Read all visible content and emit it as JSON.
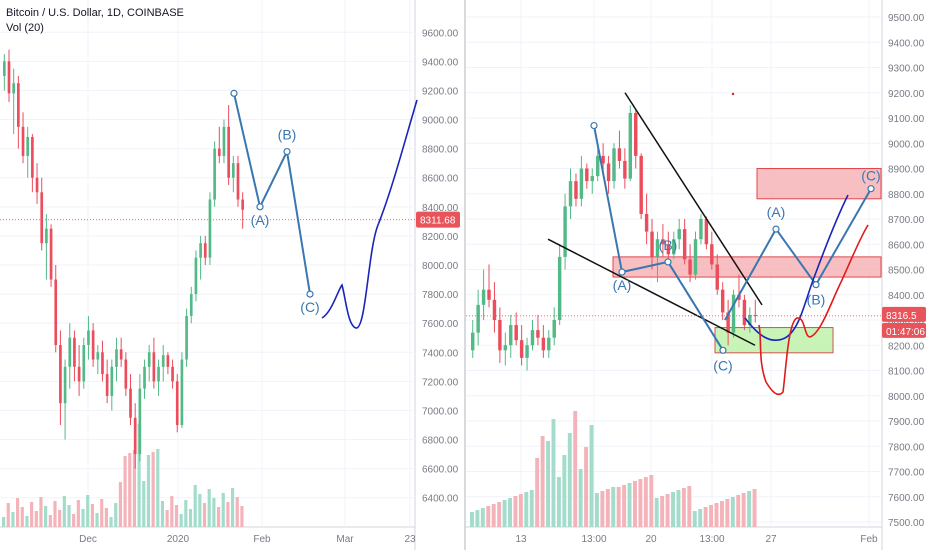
{
  "header": {
    "title": "Bitcoin / U.S. Dollar, 1D, COINBASE",
    "indicator": "Vol (20)"
  },
  "colors": {
    "up_candle": "#53b987",
    "down_candle": "#eb4d5c",
    "vol_up": "#a3dccb",
    "vol_down": "#f4b3b9",
    "wave": "#3a77b0",
    "hand_blue": "#1a24b8",
    "hand_red": "#e01b1b",
    "zone_red_fill": "#f5a9ad",
    "zone_red_stroke": "#e0474e",
    "zone_green_fill": "#b7f0a0",
    "zone_green_stroke": "#d25050",
    "price_tag": "#e8545a"
  },
  "chart_data": [
    {
      "type": "candlestick",
      "title": "Bitcoin / U.S. Dollar, 1D, COINBASE",
      "price_axis": {
        "ticks": [
          "9600.00",
          "9400.00",
          "9200.00",
          "9000.00",
          "8800.00",
          "8600.00",
          "8400.00",
          "8200.00",
          "8000.00",
          "7800.00",
          "7600.00",
          "7400.00",
          "7200.00",
          "7000.00",
          "6800.00",
          "6600.00",
          "6400.00"
        ]
      },
      "time_axis": {
        "ticks": [
          "Dec",
          "2020",
          "Feb",
          "Mar",
          "23"
        ]
      },
      "last_price_label": "8311.68",
      "last_price": 8311.68,
      "ylim": [
        6250,
        9750
      ],
      "candles_ohlc": [
        [
          9300,
          9450,
          9200,
          9400
        ],
        [
          9400,
          9480,
          9120,
          9180
        ],
        [
          9180,
          9350,
          8900,
          9250
        ],
        [
          9250,
          9300,
          8800,
          8950
        ],
        [
          8950,
          9050,
          8700,
          8750
        ],
        [
          8750,
          8950,
          8600,
          8880
        ],
        [
          8880,
          8900,
          8500,
          8600
        ],
        [
          8600,
          8700,
          8420,
          8500
        ],
        [
          8500,
          8600,
          8100,
          8150
        ],
        [
          8150,
          8350,
          7900,
          8250
        ],
        [
          8250,
          8280,
          7850,
          7900
        ],
        [
          7900,
          8000,
          7400,
          7450
        ],
        [
          7450,
          7550,
          6900,
          7050
        ],
        [
          7050,
          7350,
          6800,
          7300
        ],
        [
          7300,
          7600,
          7150,
          7500
        ],
        [
          7500,
          7550,
          7200,
          7300
        ],
        [
          7300,
          7450,
          7100,
          7200
        ],
        [
          7200,
          7500,
          7150,
          7450
        ],
        [
          7450,
          7650,
          7350,
          7550
        ],
        [
          7550,
          7600,
          7300,
          7350
        ],
        [
          7350,
          7450,
          7250,
          7400
        ],
        [
          7400,
          7480,
          7200,
          7250
        ],
        [
          7250,
          7350,
          7050,
          7100
        ],
        [
          7100,
          7350,
          7000,
          7300
        ],
        [
          7300,
          7500,
          7200,
          7420
        ],
        [
          7420,
          7500,
          7300,
          7350
        ],
        [
          7350,
          7400,
          7100,
          7150
        ],
        [
          7150,
          7250,
          6900,
          6950
        ],
        [
          6950,
          7050,
          6600,
          6700
        ],
        [
          6700,
          7250,
          6650,
          7150
        ],
        [
          7150,
          7350,
          7080,
          7300
        ],
        [
          7300,
          7450,
          7200,
          7400
        ],
        [
          7400,
          7500,
          7150,
          7200
        ],
        [
          7200,
          7350,
          7100,
          7300
        ],
        [
          7300,
          7450,
          7200,
          7380
        ],
        [
          7380,
          7400,
          7250,
          7300
        ],
        [
          7300,
          7350,
          7150,
          7200
        ],
        [
          7200,
          7250,
          6850,
          6900
        ],
        [
          6900,
          7400,
          6880,
          7350
        ],
        [
          7350,
          7700,
          7300,
          7650
        ],
        [
          7650,
          7850,
          7600,
          7800
        ],
        [
          7800,
          8100,
          7750,
          8050
        ],
        [
          8050,
          8200,
          7900,
          8150
        ],
        [
          8150,
          8200,
          8000,
          8050
        ],
        [
          8050,
          8500,
          8000,
          8450
        ],
        [
          8450,
          8850,
          8400,
          8800
        ],
        [
          8800,
          8950,
          8700,
          8750
        ],
        [
          8750,
          9000,
          8700,
          8950
        ],
        [
          8950,
          9100,
          8550,
          8600
        ],
        [
          8600,
          8750,
          8500,
          8700
        ],
        [
          8700,
          8750,
          8400,
          8450
        ],
        [
          8450,
          8500,
          8250,
          8380
        ]
      ],
      "volume_bars": 52,
      "annotations": [
        {
          "label": "(A)",
          "price": 8400
        },
        {
          "label": "(B)",
          "price": 8780
        },
        {
          "label": "(C)",
          "price": 7800
        }
      ],
      "wave_path_prices": [
        9180,
        8400,
        8780,
        7800
      ]
    },
    {
      "type": "candlestick",
      "price_axis": {
        "ticks": [
          "9500.00",
          "9400.00",
          "9300.00",
          "9200.00",
          "9100.00",
          "9000.00",
          "8900.00",
          "8800.00",
          "8700.00",
          "8600.00",
          "8500.00",
          "8400.00",
          "8300.00",
          "8200.00",
          "8100.00",
          "8000.00",
          "7900.00",
          "7800.00",
          "7700.00",
          "7600.00",
          "7500.00"
        ]
      },
      "time_axis": {
        "ticks": [
          "13",
          "13:00",
          "20",
          "13:00",
          "27",
          "Feb"
        ]
      },
      "last_price_label": "8316.5",
      "countdown_label": "01:47:06",
      "last_price": 8316.5,
      "ylim": [
        7480,
        9560
      ],
      "candles_ohlc": [
        [
          8180,
          8300,
          8150,
          8250
        ],
        [
          8250,
          8420,
          8200,
          8360
        ],
        [
          8360,
          8500,
          8300,
          8420
        ],
        [
          8420,
          8520,
          8350,
          8380
        ],
        [
          8380,
          8450,
          8250,
          8300
        ],
        [
          8300,
          8350,
          8130,
          8180
        ],
        [
          8180,
          8250,
          8120,
          8200
        ],
        [
          8200,
          8320,
          8150,
          8280
        ],
        [
          8280,
          8330,
          8200,
          8220
        ],
        [
          8220,
          8280,
          8120,
          8150
        ],
        [
          8150,
          8230,
          8100,
          8200
        ],
        [
          8200,
          8300,
          8180,
          8260
        ],
        [
          8260,
          8320,
          8200,
          8230
        ],
        [
          8230,
          8280,
          8150,
          8180
        ],
        [
          8180,
          8260,
          8150,
          8230
        ],
        [
          8230,
          8350,
          8200,
          8300
        ],
        [
          8300,
          8600,
          8280,
          8550
        ],
        [
          8550,
          8800,
          8500,
          8750
        ],
        [
          8750,
          8900,
          8700,
          8850
        ],
        [
          8850,
          8880,
          8750,
          8780
        ],
        [
          8780,
          8950,
          8750,
          8900
        ],
        [
          8900,
          8920,
          8820,
          8850
        ],
        [
          8850,
          8900,
          8800,
          8870
        ],
        [
          8870,
          8980,
          8850,
          8950
        ],
        [
          8950,
          9000,
          8880,
          8920
        ],
        [
          8920,
          8950,
          8800,
          8850
        ],
        [
          8850,
          9000,
          8820,
          8980
        ],
        [
          8980,
          9050,
          8900,
          8930
        ],
        [
          8930,
          8980,
          8820,
          8860
        ],
        [
          8860,
          9150,
          8850,
          9120
        ],
        [
          9120,
          9130,
          8900,
          8950
        ],
        [
          8950,
          8960,
          8700,
          8720
        ],
        [
          8720,
          8800,
          8600,
          8650
        ],
        [
          8650,
          8700,
          8500,
          8550
        ],
        [
          8550,
          8650,
          8450,
          8620
        ],
        [
          8620,
          8680,
          8550,
          8600
        ],
        [
          8600,
          8650,
          8520,
          8560
        ],
        [
          8560,
          8650,
          8540,
          8620
        ],
        [
          8620,
          8700,
          8580,
          8660
        ],
        [
          8660,
          8700,
          8520,
          8540
        ],
        [
          8540,
          8600,
          8450,
          8480
        ],
        [
          8480,
          8650,
          8460,
          8620
        ],
        [
          8620,
          8720,
          8600,
          8700
        ],
        [
          8700,
          8710,
          8580,
          8600
        ],
        [
          8600,
          8650,
          8500,
          8520
        ],
        [
          8520,
          8560,
          8400,
          8420
        ],
        [
          8420,
          8450,
          8300,
          8330
        ],
        [
          8330,
          8380,
          8200,
          8250
        ],
        [
          8250,
          8420,
          8230,
          8400
        ],
        [
          8400,
          8480,
          8350,
          8380
        ],
        [
          8380,
          8400,
          8260,
          8280
        ],
        [
          8280,
          8350,
          8250,
          8320
        ],
        [
          8320,
          8380,
          8290,
          8316
        ]
      ],
      "volume_bars": 53,
      "zones": [
        {
          "name": "resistance-upper",
          "from": 8780,
          "to": 8900
        },
        {
          "name": "resistance-middle",
          "from": 8470,
          "to": 8550
        },
        {
          "name": "support",
          "from": 8170,
          "to": 8270
        }
      ],
      "annotations": [
        {
          "label": "(A)",
          "price": 8490
        },
        {
          "label": "(B)",
          "price": 8530
        },
        {
          "label": "(C)",
          "price": 8180
        },
        {
          "label": "(A)",
          "price": 8660
        },
        {
          "label": "(B)",
          "price": 8440
        },
        {
          "label": "(C)",
          "price": 8820
        }
      ]
    }
  ]
}
